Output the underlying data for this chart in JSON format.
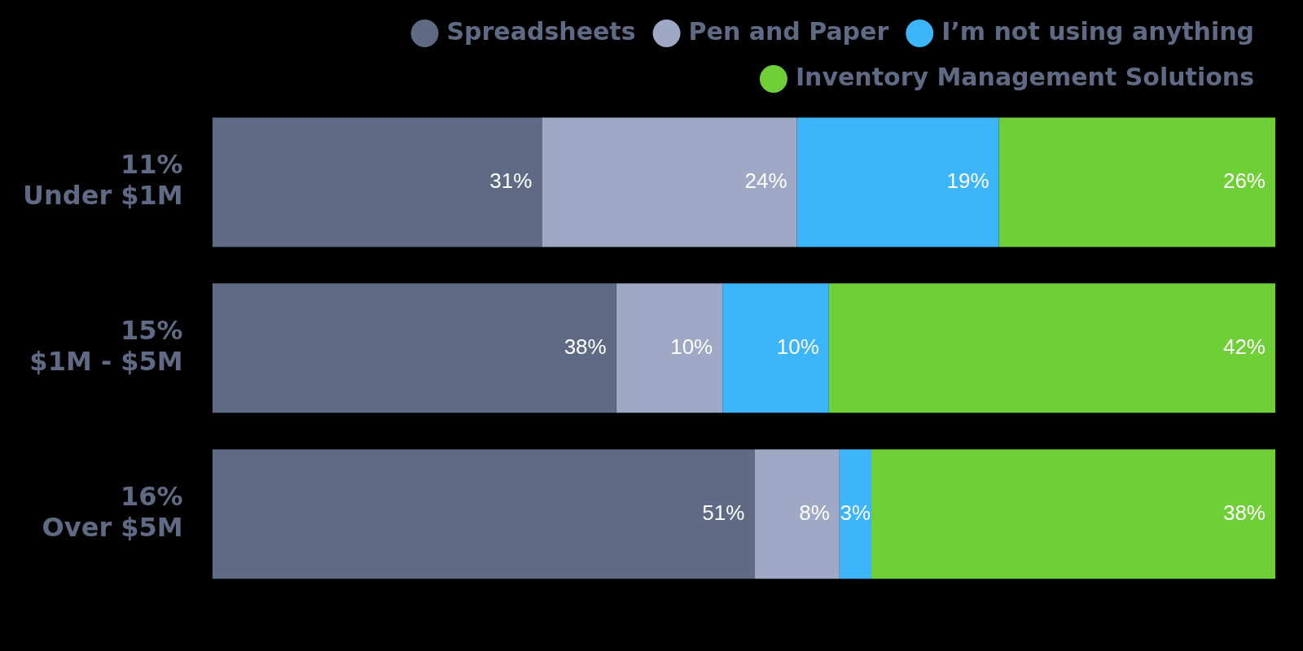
{
  "chart_data": {
    "type": "bar",
    "orientation": "horizontal",
    "stacked": true,
    "legend": "top",
    "tick_labels": "y",
    "categories": [
      "11%\nUnder $1M",
      "15%\n$1M - $5M",
      "16%\nOver $5M"
    ],
    "series": [
      {
        "name": "Spreadsheets",
        "color": "#5f6a85",
        "values": [
          31,
          38,
          51
        ],
        "value_labels": [
          "31%",
          "38%",
          "51%"
        ]
      },
      {
        "name": "Pen and Paper",
        "color": "#9fa9c6",
        "values": [
          24,
          10,
          8
        ],
        "value_labels": [
          "24%",
          "10%",
          "8%"
        ]
      },
      {
        "name": "I’m not using anything",
        "color": "#3db5fb",
        "values": [
          19,
          10,
          3
        ],
        "value_labels": [
          "19%",
          "10%",
          "3%"
        ]
      },
      {
        "name": "Inventory Management Solutions",
        "color": "#6fcf36",
        "values": [
          26,
          42,
          38
        ],
        "value_labels": [
          "26%",
          "42%",
          "38%"
        ]
      }
    ]
  }
}
